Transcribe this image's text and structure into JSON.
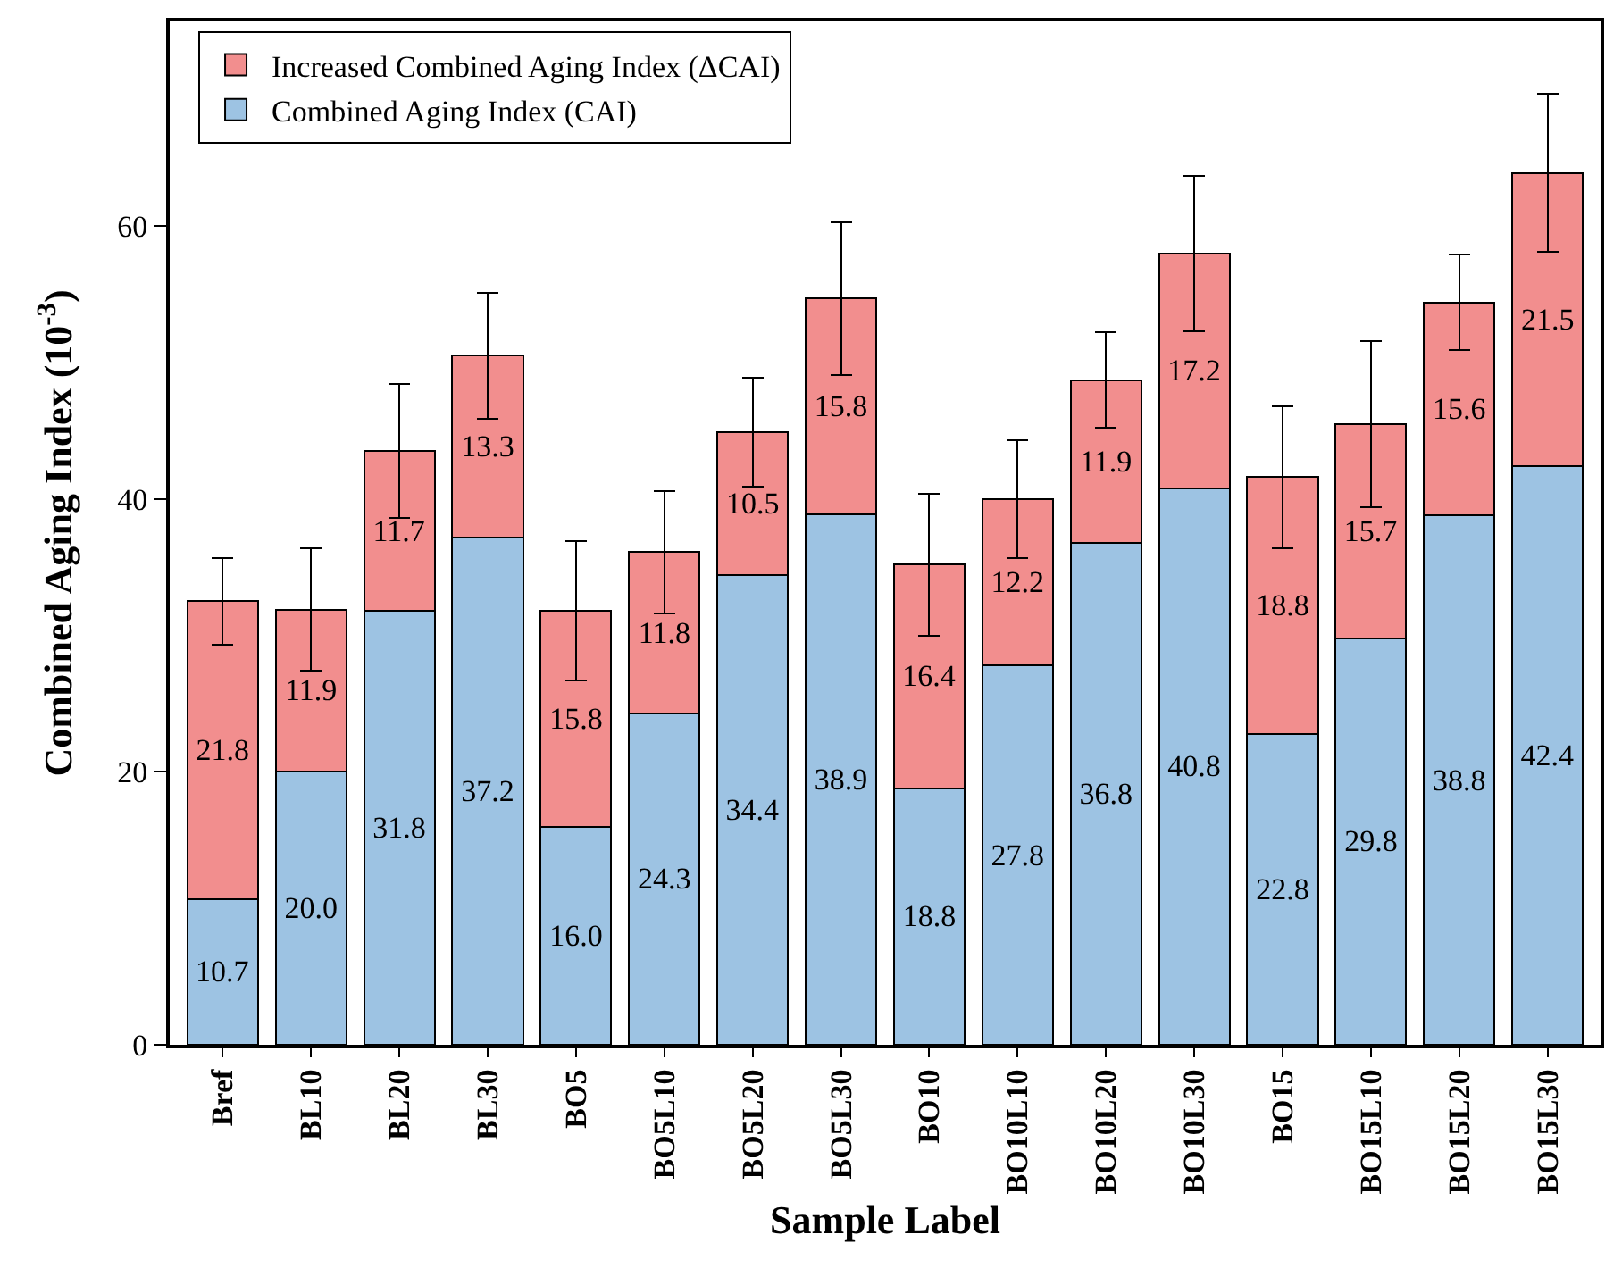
{
  "chart_data": {
    "type": "bar",
    "stacked": true,
    "xlabel": "Sample Label",
    "ylabel": "Combined Aging Index (10$^{-3}$)",
    "categories": [
      "Bref",
      "BL10",
      "BL20",
      "BL30",
      "BO5",
      "BO5L10",
      "BO5L20",
      "BO5L30",
      "BO10",
      "BO10L10",
      "BO10L20",
      "BO10L30",
      "BO15",
      "BO15L10",
      "BO15L20",
      "BO15L30"
    ],
    "series": [
      {
        "name": "Combined Aging Index (CAI)",
        "color": "#9dc3e3",
        "values": [
          10.7,
          20.0,
          31.8,
          37.2,
          16.0,
          24.3,
          34.4,
          38.9,
          18.8,
          27.8,
          36.8,
          40.8,
          22.8,
          29.8,
          38.8,
          42.4
        ],
        "value_labels": [
          "10.7",
          "20.0",
          "31.8",
          "37.2",
          "16.0",
          "24.3",
          "34.4",
          "38.9",
          "18.8",
          "27.8",
          "36.8",
          "40.8",
          "22.8",
          "29.8",
          "38.8",
          "42.4"
        ]
      },
      {
        "name": "Increased Combined Aging Index (ΔCAI)",
        "color": "#f28e8e",
        "values": [
          21.8,
          11.9,
          11.7,
          13.3,
          15.8,
          11.8,
          10.5,
          15.8,
          16.4,
          12.2,
          11.9,
          17.2,
          18.8,
          15.7,
          15.6,
          21.5
        ],
        "value_labels": [
          "21.8",
          "11.9",
          "11.7",
          "13.3",
          "15.8",
          "11.8",
          "10.5",
          "15.8",
          "16.4",
          "12.2",
          "11.9",
          "17.2",
          "18.8",
          "15.7",
          "15.6",
          "21.5"
        ],
        "errors": [
          3.2,
          4.5,
          4.9,
          4.6,
          5.1,
          4.5,
          4.0,
          5.6,
          5.2,
          4.3,
          3.5,
          5.7,
          5.2,
          6.1,
          3.5,
          5.8
        ]
      }
    ],
    "ylim": [
      0,
      75
    ],
    "yticks": [
      0,
      20,
      40,
      60
    ],
    "legend": "top left",
    "grid": false
  }
}
